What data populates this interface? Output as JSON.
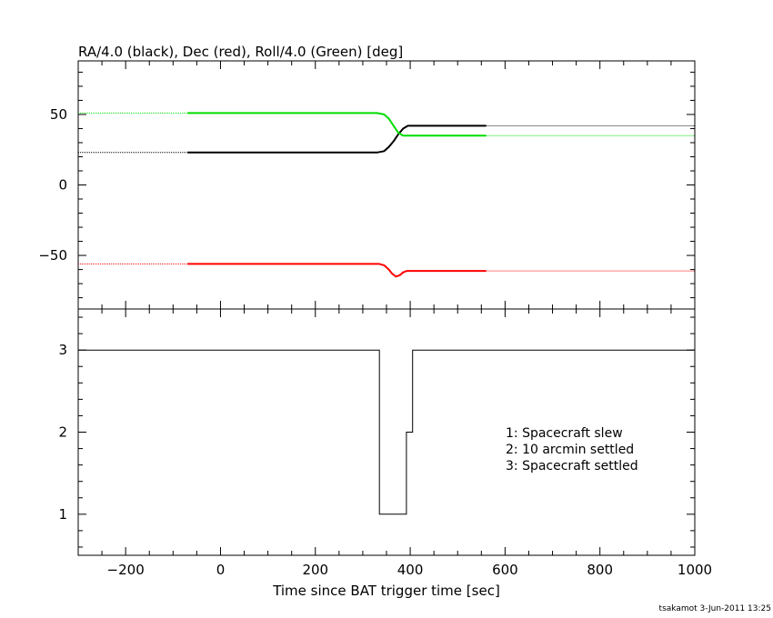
{
  "chart_data": [
    {
      "type": "line",
      "title": "RA/4.0 (black), Dec (red), Roll/4.0 (Green) [deg]",
      "xlim": [
        -300,
        1000
      ],
      "ylim": [
        -88,
        88
      ],
      "yticks": [
        50,
        0,
        -50
      ],
      "ytick_labels": [
        "50",
        "0",
        "−50"
      ],
      "grid": false,
      "series": [
        {
          "color": "#000000",
          "dotted_before": -70,
          "dotted_after": 560,
          "x": [
            -300,
            -70,
            330,
            345,
            355,
            365,
            375,
            385,
            395,
            405,
            420,
            560,
            1000
          ],
          "y": [
            23,
            23,
            23,
            24,
            27,
            31,
            36,
            40,
            42,
            42,
            42,
            42,
            42
          ]
        },
        {
          "color": "#ff0000",
          "dotted_before": -70,
          "dotted_after": 560,
          "x": [
            -300,
            -70,
            335,
            345,
            355,
            362,
            370,
            378,
            385,
            393,
            400,
            420,
            560,
            1000
          ],
          "y": [
            -56,
            -56,
            -56,
            -57,
            -60,
            -63,
            -65,
            -64,
            -62,
            -61,
            -61,
            -61,
            -61,
            -61
          ]
        },
        {
          "color": "#00dd00",
          "dotted_before": -70,
          "dotted_after": 560,
          "x": [
            -300,
            -70,
            330,
            345,
            355,
            365,
            375,
            385,
            395,
            410,
            560,
            1000
          ],
          "y": [
            51,
            51,
            51,
            50,
            47,
            42,
            37,
            35,
            35,
            35,
            35,
            35
          ]
        }
      ]
    },
    {
      "type": "line",
      "step": true,
      "xlim": [
        -300,
        1000
      ],
      "ylim": [
        0.5,
        3.5
      ],
      "xticks": [
        -200,
        0,
        200,
        400,
        600,
        800,
        1000
      ],
      "xtick_labels": [
        "−200",
        "0",
        "200",
        "400",
        "600",
        "800",
        "1000"
      ],
      "yticks": [
        3,
        2,
        1
      ],
      "ytick_labels": [
        "3",
        "2",
        "1"
      ],
      "xlabel": "Time since BAT trigger time [sec]",
      "grid": false,
      "series": [
        {
          "color": "#000000",
          "x": [
            -300,
            335,
            335,
            392,
            392,
            405,
            405,
            1000
          ],
          "y": [
            3,
            3,
            1,
            1,
            2,
            2,
            3,
            3
          ]
        }
      ],
      "annotations": [
        "1: Spacecraft slew",
        "2: 10 arcmin settled",
        "3: Spacecraft settled"
      ]
    }
  ],
  "footer": "tsakamot  3-Jun-2011 13:25"
}
